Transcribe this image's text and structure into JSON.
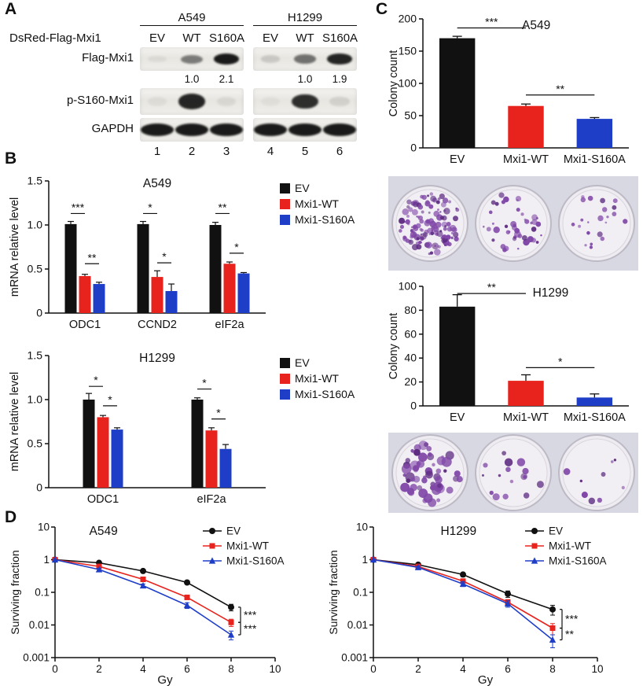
{
  "panels": {
    "A": {
      "label": "A",
      "construct": "DsRed-Flag-Mxi1",
      "groups": [
        {
          "cell_line": "A549",
          "lanes": [
            "EV",
            "WT",
            "S160A"
          ],
          "lane_numbers": [
            "1",
            "2",
            "3"
          ]
        },
        {
          "cell_line": "H1299",
          "lanes": [
            "EV",
            "WT",
            "S160A"
          ],
          "lane_numbers": [
            "4",
            "5",
            "6"
          ]
        }
      ],
      "rows": [
        {
          "label": "Flag-Mxi1",
          "bands": [
            [
              0.06,
              0.5,
              0.95
            ],
            [
              0.14,
              0.55,
              0.9
            ]
          ],
          "quant": [
            [
              "",
              "1.0",
              "2.1"
            ],
            [
              "",
              "1.0",
              "1.9"
            ]
          ]
        },
        {
          "label": "p-S160-Mxi1",
          "bands": [
            [
              0.05,
              0.9,
              0.07
            ],
            [
              0.04,
              0.86,
              0.1
            ]
          ]
        },
        {
          "label": "GAPDH",
          "bands": [
            [
              0.95,
              0.95,
              0.95
            ],
            [
              0.95,
              0.95,
              0.95
            ]
          ]
        }
      ]
    },
    "B": {
      "label": "B"
    },
    "C": {
      "label": "C"
    },
    "D": {
      "label": "D"
    }
  },
  "chart_data": [
    {
      "id": "b_a549",
      "type": "bar",
      "title": "A549",
      "ylabel": "mRNA relative level",
      "ylim": [
        0,
        1.5
      ],
      "yticks": [
        0,
        0.5,
        1.0,
        1.5
      ],
      "ytick_labels": [
        "0",
        "0.5",
        "1.0",
        "1.5"
      ],
      "categories": [
        "ODC1",
        "CCND2",
        "eIF2a"
      ],
      "series": [
        {
          "name": "EV",
          "color": "#111111",
          "values": [
            1.01,
            1.01,
            1.0
          ],
          "errors": [
            0.03,
            0.03,
            0.03
          ]
        },
        {
          "name": "Mxi1-WT",
          "color": "#e8231d",
          "values": [
            0.42,
            0.41,
            0.56
          ],
          "errors": [
            0.02,
            0.07,
            0.02
          ]
        },
        {
          "name": "Mxi1-S160A",
          "color": "#1e3ec8",
          "values": [
            0.33,
            0.25,
            0.45
          ],
          "errors": [
            0.02,
            0.08,
            0.01
          ]
        }
      ],
      "significance": [
        {
          "a": [
            0,
            0
          ],
          "b": [
            0,
            1
          ],
          "y": 1.13,
          "stars": "***"
        },
        {
          "a": [
            0,
            1
          ],
          "b": [
            0,
            2
          ],
          "y": 0.56,
          "stars": "**"
        },
        {
          "a": [
            1,
            0
          ],
          "b": [
            1,
            1
          ],
          "y": 1.13,
          "stars": "*"
        },
        {
          "a": [
            1,
            1
          ],
          "b": [
            1,
            2
          ],
          "y": 0.57,
          "stars": "*"
        },
        {
          "a": [
            2,
            0
          ],
          "b": [
            2,
            1
          ],
          "y": 1.13,
          "stars": "**"
        },
        {
          "a": [
            2,
            1
          ],
          "b": [
            2,
            2
          ],
          "y": 0.68,
          "stars": "*"
        }
      ],
      "legend": true,
      "title_pos": {
        "x": 0.5,
        "dy": 8
      }
    },
    {
      "id": "b_h1299",
      "type": "bar",
      "title": "H1299",
      "ylabel": "mRNA relative level",
      "ylim": [
        0,
        1.5
      ],
      "yticks": [
        0,
        0.5,
        1.0,
        1.5
      ],
      "ytick_labels": [
        "0",
        "0.5",
        "1.0",
        "1.5"
      ],
      "categories": [
        "ODC1",
        "eIF2a"
      ],
      "series": [
        {
          "name": "EV",
          "color": "#111111",
          "values": [
            1.0,
            1.0
          ],
          "errors": [
            0.07,
            0.02
          ]
        },
        {
          "name": "Mxi1-WT",
          "color": "#e8231d",
          "values": [
            0.8,
            0.65
          ],
          "errors": [
            0.02,
            0.03
          ]
        },
        {
          "name": "Mxi1-S160A",
          "color": "#1e3ec8",
          "values": [
            0.66,
            0.44
          ],
          "errors": [
            0.02,
            0.05
          ]
        }
      ],
      "significance": [
        {
          "a": [
            0,
            0
          ],
          "b": [
            0,
            1
          ],
          "y": 1.15,
          "stars": "*"
        },
        {
          "a": [
            0,
            1
          ],
          "b": [
            0,
            2
          ],
          "y": 0.93,
          "stars": "*"
        },
        {
          "a": [
            1,
            0
          ],
          "b": [
            1,
            1
          ],
          "y": 1.12,
          "stars": "*"
        },
        {
          "a": [
            1,
            1
          ],
          "b": [
            1,
            2
          ],
          "y": 0.78,
          "stars": "*"
        }
      ],
      "legend": true,
      "title_pos": {
        "x": 0.5,
        "dy": 8
      }
    },
    {
      "id": "c_a549",
      "type": "bar",
      "title": "A549",
      "ylabel": "Colony count",
      "ylim": [
        0,
        200
      ],
      "yticks": [
        0,
        50,
        100,
        150,
        200
      ],
      "ytick_labels": [
        "0",
        "50",
        "100",
        "150",
        "200"
      ],
      "bars": [
        {
          "label": "EV",
          "value": 170,
          "error": 3,
          "color": "#111111"
        },
        {
          "label": "Mxi1-WT",
          "value": 65,
          "error": 3,
          "color": "#e8231d"
        },
        {
          "label": "Mxi1-S160A",
          "value": 45,
          "error": 2,
          "color": "#1e3ec8"
        }
      ],
      "significance": [
        {
          "a": 0,
          "b": 1,
          "y": 186,
          "stars": "***"
        },
        {
          "a": 1,
          "b": 2,
          "y": 82,
          "stars": "**"
        }
      ],
      "title_pos": {
        "x": 0.55,
        "dy": 13
      }
    },
    {
      "id": "c_h1299",
      "type": "bar",
      "title": "H1299",
      "ylabel": "Colony count",
      "ylim": [
        0,
        100
      ],
      "yticks": [
        0,
        20,
        40,
        60,
        80,
        100
      ],
      "ytick_labels": [
        "0",
        "20",
        "40",
        "60",
        "80",
        "100"
      ],
      "bars": [
        {
          "label": "EV",
          "value": 83,
          "error": 10,
          "color": "#111111"
        },
        {
          "label": "Mxi1-WT",
          "value": 21,
          "error": 5,
          "color": "#e8231d"
        },
        {
          "label": "Mxi1-S160A",
          "value": 7,
          "error": 3,
          "color": "#1e3ec8"
        }
      ],
      "significance": [
        {
          "a": 0,
          "b": 1,
          "y": 94,
          "stars": "**"
        },
        {
          "a": 1,
          "b": 2,
          "y": 32,
          "stars": "*"
        }
      ],
      "title_pos": {
        "x": 0.62,
        "dy": 13
      }
    },
    {
      "id": "d_a549",
      "type": "line",
      "title": "A549",
      "xlabel": "Gy",
      "ylabel": "Surviving fraction",
      "x": [
        0,
        2,
        4,
        6,
        8
      ],
      "xlim": [
        0,
        10
      ],
      "xticks": [
        0,
        2,
        4,
        6,
        8,
        10
      ],
      "xtick_labels": [
        "0",
        "2",
        "4",
        "6",
        "8",
        "10"
      ],
      "ylog": true,
      "ylim": [
        0.001,
        10
      ],
      "yticks": [
        10,
        1,
        0.1,
        0.01,
        0.001
      ],
      "ytick_labels": [
        "10",
        "1",
        "0.1",
        "0.01",
        "0.001"
      ],
      "series": [
        {
          "name": "EV",
          "color": "#111111",
          "marker": "circle",
          "values": [
            1,
            0.8,
            0.45,
            0.2,
            0.035
          ],
          "errors": [
            0,
            0.05,
            0.04,
            0.02,
            0.008
          ]
        },
        {
          "name": "Mxi1-WT",
          "color": "#e8231d",
          "marker": "square",
          "values": [
            1,
            0.62,
            0.25,
            0.07,
            0.012
          ],
          "errors": [
            0,
            0.04,
            0.03,
            0.01,
            0.003
          ]
        },
        {
          "name": "Mxi1-S160A",
          "color": "#1e3ec8",
          "marker": "triangle",
          "values": [
            1,
            0.5,
            0.16,
            0.04,
            0.005
          ],
          "errors": [
            0,
            0.04,
            0.02,
            0.008,
            0.0015
          ]
        }
      ],
      "significance": [
        {
          "from": 0,
          "to": 1,
          "stars": "***"
        },
        {
          "from": 1,
          "to": 2,
          "stars": "***"
        }
      ],
      "title_pos": {
        "x": 0.22,
        "dy": 10
      }
    },
    {
      "id": "d_h1299",
      "type": "line",
      "title": "H1299",
      "xlabel": "Gy",
      "ylabel": "Surviving fraction",
      "x": [
        0,
        2,
        4,
        6,
        8
      ],
      "xlim": [
        0,
        10
      ],
      "xticks": [
        0,
        2,
        4,
        6,
        8,
        10
      ],
      "xtick_labels": [
        "0",
        "2",
        "4",
        "6",
        "8",
        "10"
      ],
      "ylog": true,
      "ylim": [
        0.001,
        10
      ],
      "yticks": [
        10,
        1,
        0.1,
        0.01,
        0.001
      ],
      "ytick_labels": [
        "10",
        "1",
        "0.1",
        "0.01",
        "0.001"
      ],
      "series": [
        {
          "name": "EV",
          "color": "#111111",
          "marker": "circle",
          "values": [
            1,
            0.7,
            0.35,
            0.09,
            0.03
          ],
          "errors": [
            0,
            0.05,
            0.05,
            0.02,
            0.01
          ]
        },
        {
          "name": "Mxi1-WT",
          "color": "#e8231d",
          "marker": "square",
          "values": [
            1,
            0.62,
            0.22,
            0.05,
            0.008
          ],
          "errors": [
            0,
            0.05,
            0.03,
            0.01,
            0.003
          ]
        },
        {
          "name": "Mxi1-S160A",
          "color": "#1e3ec8",
          "marker": "triangle",
          "values": [
            1,
            0.58,
            0.18,
            0.045,
            0.0035
          ],
          "errors": [
            0,
            0.05,
            0.03,
            0.01,
            0.0015
          ]
        }
      ],
      "significance": [
        {
          "from": 0,
          "to": 1,
          "stars": "***"
        },
        {
          "from": 1,
          "to": 2,
          "stars": "**"
        }
      ],
      "title_pos": {
        "x": 0.38,
        "dy": 10
      }
    }
  ],
  "colony_assays": [
    {
      "id": "colony_a549",
      "cell_line": "A549",
      "wells": [
        {
          "label": "EV",
          "colonies": 130,
          "dot_scale": 1.0
        },
        {
          "label": "Mxi1-WT",
          "colonies": 45,
          "dot_scale": 1.0
        },
        {
          "label": "Mxi1-S160A",
          "colonies": 22,
          "dot_scale": 0.85
        }
      ]
    },
    {
      "id": "colony_h1299",
      "cell_line": "H1299",
      "wells": [
        {
          "label": "EV",
          "colonies": 58,
          "dot_scale": 1.5
        },
        {
          "label": "Mxi1-WT",
          "colonies": 16,
          "dot_scale": 1.2
        },
        {
          "label": "Mxi1-S160A",
          "colonies": 9,
          "dot_scale": 1.0
        }
      ]
    }
  ]
}
